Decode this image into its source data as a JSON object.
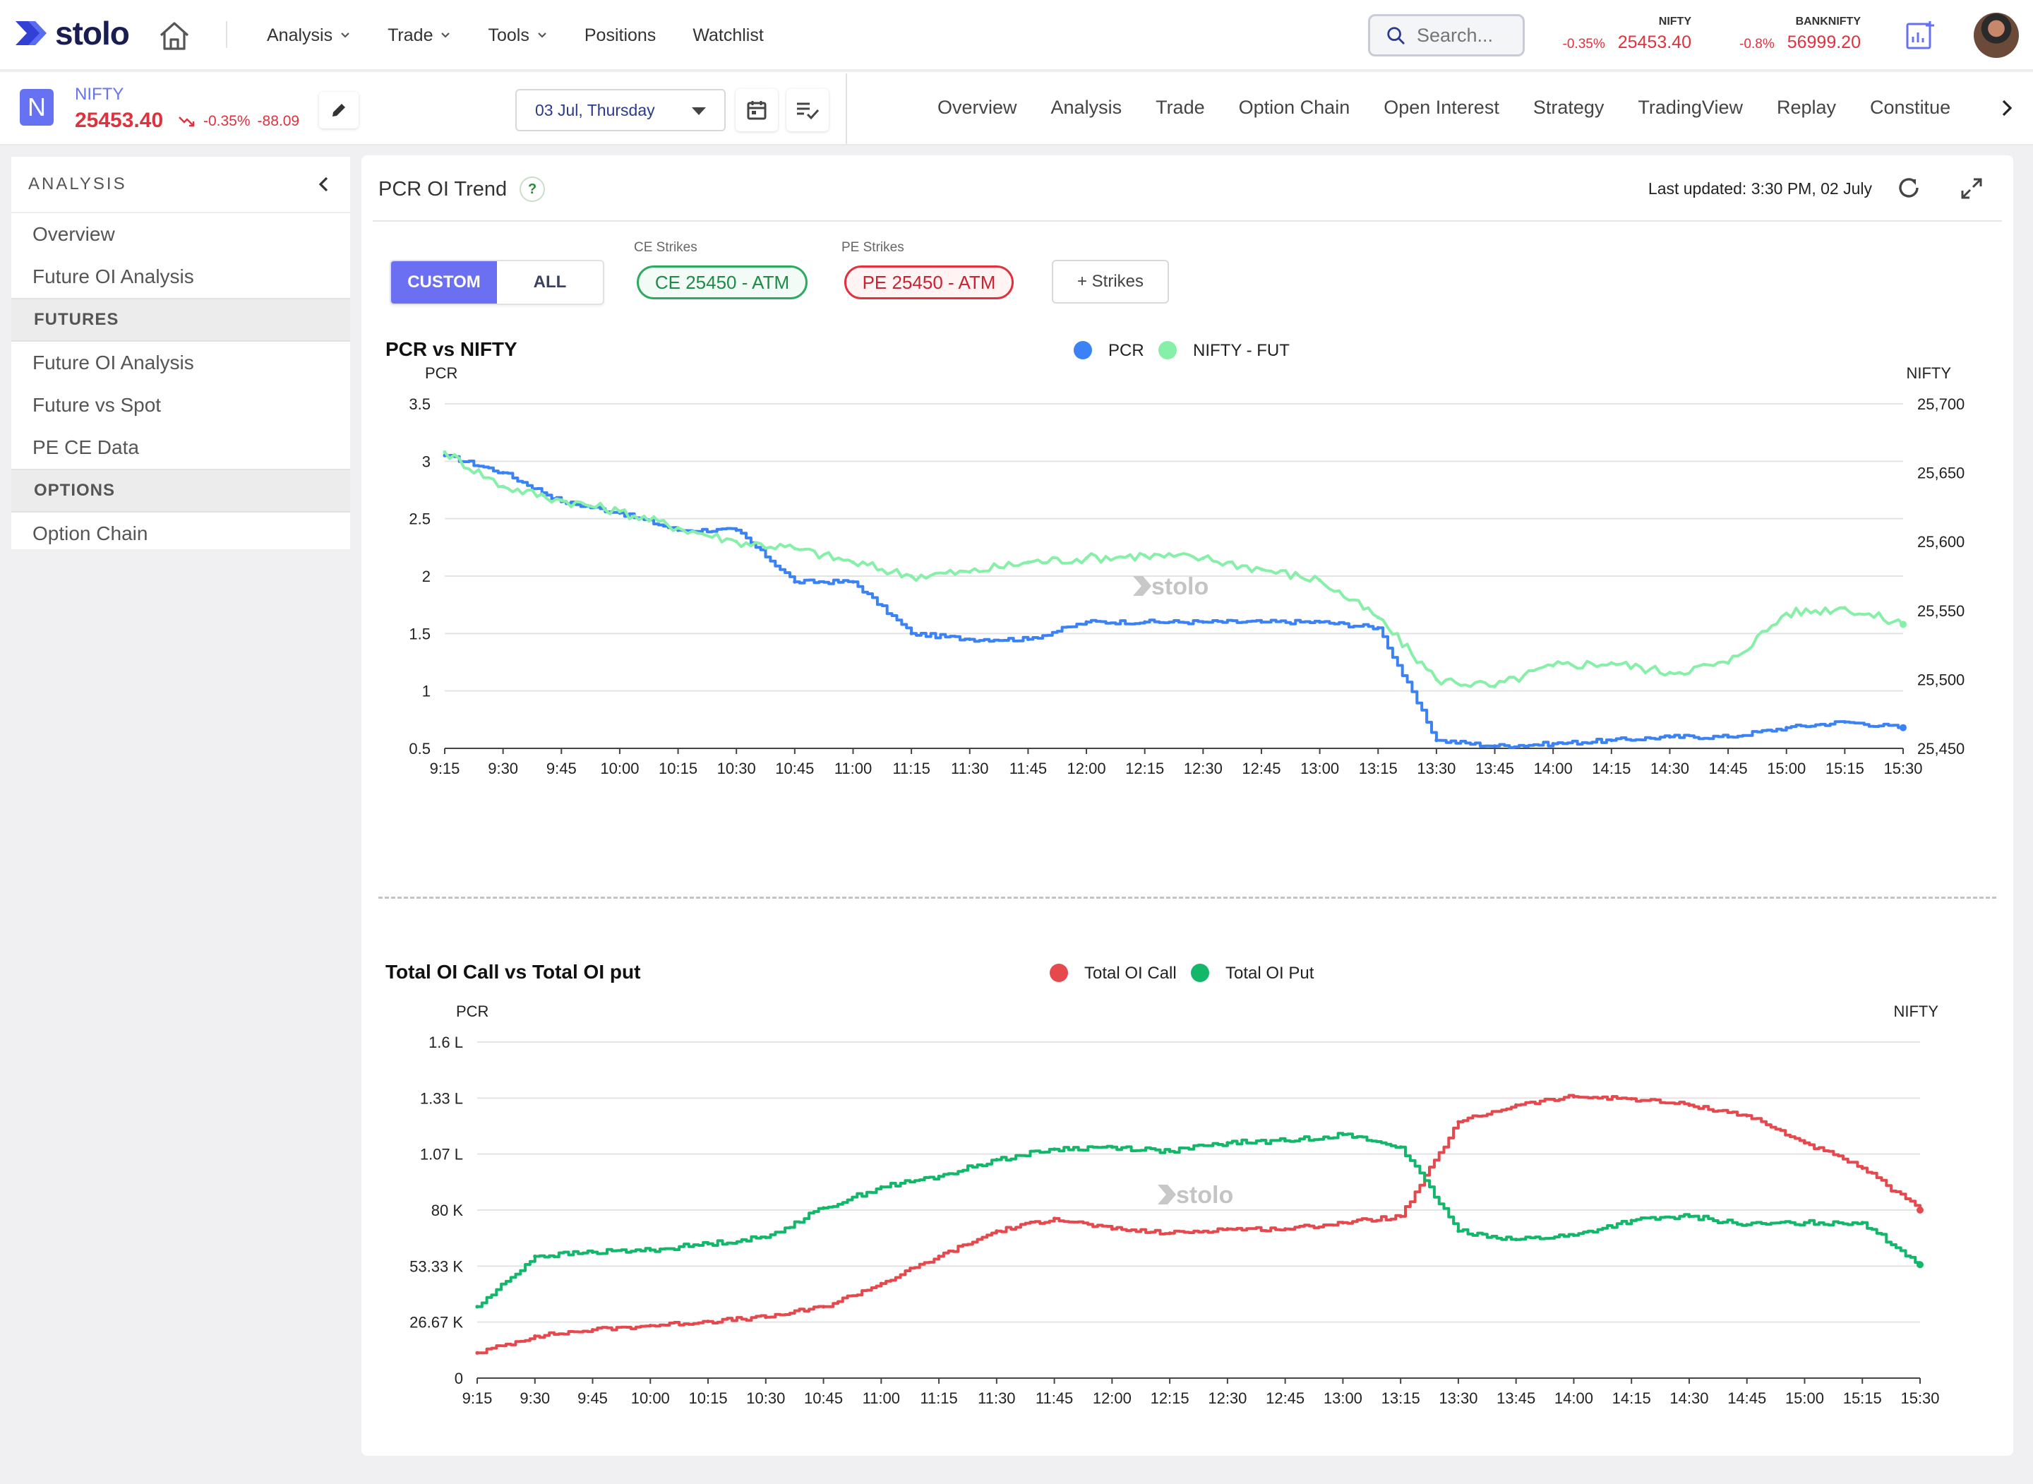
{
  "brand": {
    "name": "stolo"
  },
  "nav": {
    "menus": [
      {
        "label": "Analysis",
        "dropdown": true
      },
      {
        "label": "Trade",
        "dropdown": true
      },
      {
        "label": "Tools",
        "dropdown": true
      },
      {
        "label": "Positions",
        "dropdown": false
      },
      {
        "label": "Watchlist",
        "dropdown": false
      }
    ],
    "search_placeholder": "Search...",
    "tickers": [
      {
        "name": "NIFTY",
        "change": "-0.35%",
        "price": "25453.40"
      },
      {
        "name": "BANKNIFTY",
        "change": "-0.8%",
        "price": "56999.20"
      }
    ]
  },
  "symbol": {
    "badge": "N",
    "name": "NIFTY",
    "price": "25453.40",
    "change_pct": "-0.35%",
    "change_abs": "-88.09"
  },
  "date_selector": {
    "value": "03 Jul, Thursday"
  },
  "tabs": [
    "Overview",
    "Analysis",
    "Trade",
    "Option Chain",
    "Open Interest",
    "Strategy",
    "TradingView",
    "Replay",
    "Constitue"
  ],
  "sidebar": {
    "title": "ANALYSIS",
    "items": [
      {
        "type": "item",
        "label": "Overview"
      },
      {
        "type": "item",
        "label": "Future OI Analysis"
      },
      {
        "type": "section",
        "label": "FUTURES"
      },
      {
        "type": "item",
        "label": "Future OI Analysis"
      },
      {
        "type": "item",
        "label": "Future vs Spot"
      },
      {
        "type": "item",
        "label": "PE CE Data"
      },
      {
        "type": "section",
        "label": "OPTIONS"
      },
      {
        "type": "item",
        "label": "Option Chain"
      }
    ]
  },
  "panel": {
    "title": "PCR OI Trend",
    "help": "?",
    "last_updated": "Last updated: 3:30 PM, 02 July",
    "mode_options": [
      "CUSTOM",
      "ALL"
    ],
    "mode_selected": "CUSTOM",
    "ce_label": "CE Strikes",
    "ce_value": "CE 25450 - ATM",
    "pe_label": "PE Strikes",
    "pe_value": "PE 25450 - ATM",
    "add_strikes": "+ Strikes",
    "watermark": "stolo"
  },
  "colors": {
    "accent": "#6b6ff2",
    "pcr": "#3b82f6",
    "nifty_fut": "#86f0a8",
    "call": "#e5484d",
    "put": "#12b76a",
    "negative": "#e0323e"
  },
  "chart_data": [
    {
      "type": "line",
      "title": "PCR vs NIFTY",
      "ylabel": "PCR",
      "y2label": "NIFTY",
      "x": [
        "9:15",
        "9:30",
        "9:45",
        "10:00",
        "10:15",
        "10:30",
        "10:45",
        "11:00",
        "11:15",
        "11:30",
        "11:45",
        "12:00",
        "12:15",
        "12:30",
        "12:45",
        "13:00",
        "13:15",
        "13:30",
        "13:45",
        "14:00",
        "14:15",
        "14:30",
        "14:45",
        "15:00",
        "15:15",
        "15:30"
      ],
      "ylim": [
        0.5,
        3.5
      ],
      "yticks": [
        "0.5",
        "1",
        "1.5",
        "2",
        "2.5",
        "3",
        "3.5"
      ],
      "y2lim": [
        25450,
        25700
      ],
      "y2ticks": [
        "25,450",
        "25,500",
        "25,550",
        "25,600",
        "25,650",
        "25,700"
      ],
      "legend_position": "top-center",
      "series": [
        {
          "name": "PCR",
          "axis": "left",
          "values": [
            3.05,
            2.9,
            2.65,
            2.55,
            2.4,
            2.4,
            1.95,
            1.95,
            1.5,
            1.45,
            1.45,
            1.6,
            1.6,
            1.6,
            1.6,
            1.6,
            1.55,
            0.57,
            0.52,
            0.54,
            0.57,
            0.6,
            0.6,
            0.68,
            0.73,
            0.68
          ]
        },
        {
          "name": "NIFTY - FUT",
          "axis": "right",
          "values": [
            25665,
            25640,
            25630,
            25622,
            25610,
            25600,
            25595,
            25585,
            25575,
            25578,
            25585,
            25588,
            25590,
            25588,
            25580,
            25572,
            25545,
            25500,
            25495,
            25510,
            25512,
            25505,
            25512,
            25548,
            25552,
            25540
          ]
        }
      ]
    },
    {
      "type": "line",
      "title": "Total OI Call vs Total OI put",
      "ylabel": "PCR",
      "y2label": "NIFTY",
      "x": [
        "9:15",
        "9:30",
        "9:45",
        "10:00",
        "10:15",
        "10:30",
        "10:45",
        "11:00",
        "11:15",
        "11:30",
        "11:45",
        "12:00",
        "12:15",
        "12:30",
        "12:45",
        "13:00",
        "13:15",
        "13:30",
        "13:45",
        "14:00",
        "14:15",
        "14:30",
        "14:45",
        "15:00",
        "15:15",
        "15:30"
      ],
      "ylim": [
        0,
        160000
      ],
      "yticks": [
        "0",
        "26.67 K",
        "53.33 K",
        "80 K",
        "1.07 L",
        "1.33 L",
        "1.6 L"
      ],
      "legend_position": "top-center",
      "series": [
        {
          "name": "Total OI Call",
          "values": [
            12000,
            20000,
            23000,
            25000,
            27000,
            29000,
            34000,
            45000,
            58000,
            70000,
            76000,
            71000,
            69000,
            71000,
            71000,
            74000,
            77000,
            122000,
            130000,
            134000,
            133000,
            130000,
            125000,
            112000,
            100000,
            80000
          ]
        },
        {
          "name": "Total OI Put",
          "values": [
            34000,
            58000,
            60000,
            61000,
            64000,
            67000,
            81000,
            91000,
            96000,
            104000,
            109000,
            110000,
            108000,
            112000,
            113000,
            116000,
            110000,
            70000,
            66000,
            68000,
            75000,
            77000,
            73000,
            74000,
            74000,
            54000
          ]
        }
      ]
    }
  ]
}
